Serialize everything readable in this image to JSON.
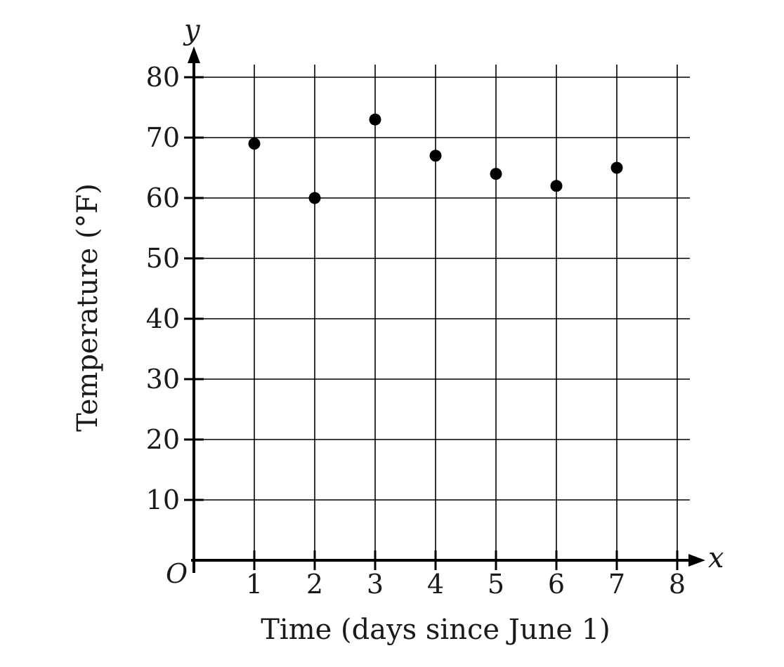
{
  "chart_data": {
    "type": "scatter",
    "title": "",
    "xlabel": "Time (days since June 1)",
    "ylabel": "Temperature (°F)",
    "x_axis_var": "x",
    "y_axis_var": "y",
    "origin_label": "O",
    "xlim": [
      0,
      8
    ],
    "ylim": [
      0,
      80
    ],
    "x_ticks": [
      1,
      2,
      3,
      4,
      5,
      6,
      7,
      8
    ],
    "y_ticks": [
      10,
      20,
      30,
      40,
      50,
      60,
      70,
      80
    ],
    "grid": true,
    "point_color": "#000000",
    "series": [
      {
        "x": [
          1,
          2,
          3,
          4,
          5,
          6,
          7
        ],
        "y": [
          69,
          60,
          73,
          67,
          64,
          62,
          65
        ]
      }
    ]
  }
}
